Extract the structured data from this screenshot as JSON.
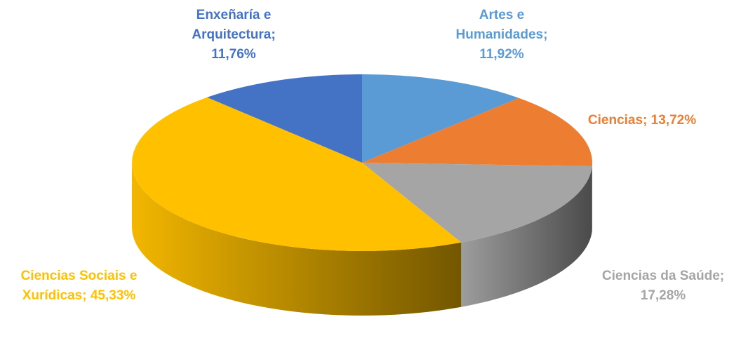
{
  "chart_data": {
    "type": "pie3d",
    "categories": [
      "Artes e Humanidades",
      "Ciencias",
      "Ciencias da Saúde",
      "Ciencias Sociais e Xurídicas",
      "Enxeñaría e Arquitectura"
    ],
    "values": [
      11.92,
      13.72,
      17.28,
      45.33,
      11.76
    ],
    "value_labels": [
      "11,92%",
      "13,72%",
      "17,28%",
      "45,33%",
      "11,76%"
    ],
    "colors": [
      "#5b9bd5",
      "#ed7d31",
      "#a5a5a5",
      "#ffc000",
      "#4472c4"
    ]
  }
}
